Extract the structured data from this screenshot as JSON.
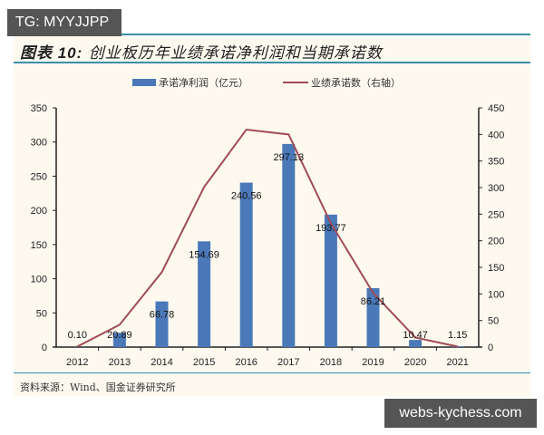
{
  "watermarks": {
    "top_left": "TG: MYYJJPP",
    "bottom_right": "webs-kychess.com"
  },
  "figure": {
    "title_prefix": "图表 10:",
    "title_text": "创业板历年业绩承诺净利润和当期承诺数",
    "source": "资料来源：Wind、国金证券研究所"
  },
  "legend": {
    "bar_label": "承诺净利润（亿元）",
    "line_label": "业绩承诺数（右轴）"
  },
  "colors": {
    "bar": "#4a78b8",
    "line": "#a04c55",
    "rule": "#3a8fa8",
    "panel_bg": "#fdf9ef"
  },
  "chart_data": {
    "type": "bar",
    "title": "图表 10: 创业板历年业绩承诺净利润和当期承诺数",
    "categories": [
      "2012",
      "2013",
      "2014",
      "2015",
      "2016",
      "2017",
      "2018",
      "2019",
      "2020",
      "2021"
    ],
    "series": [
      {
        "name": "承诺净利润（亿元）",
        "type": "bar",
        "axis": "left",
        "values": [
          0.1,
          20.89,
          66.78,
          154.69,
          240.56,
          297.13,
          193.77,
          86.21,
          10.47,
          1.15
        ],
        "labels": [
          "0.10",
          "20.89",
          "66.78",
          "154.69",
          "240.56",
          "297.13",
          "193.77",
          "86.21",
          "10.47",
          "1.15"
        ]
      },
      {
        "name": "业绩承诺数（右轴）",
        "type": "line",
        "axis": "right",
        "values": [
          1,
          42,
          141,
          301,
          409,
          400,
          233,
          102,
          18,
          1
        ]
      }
    ],
    "left_axis": {
      "min": 0,
      "max": 350,
      "ticks": [
        "0",
        "50",
        "100",
        "150",
        "200",
        "250",
        "300",
        "350"
      ]
    },
    "right_axis": {
      "min": 0,
      "max": 450,
      "ticks": [
        "0",
        "50",
        "100",
        "150",
        "200",
        "250",
        "300",
        "350",
        "400",
        "450"
      ]
    },
    "xlabel": "",
    "ylabel": "",
    "grid": false,
    "legend_position": "top"
  }
}
